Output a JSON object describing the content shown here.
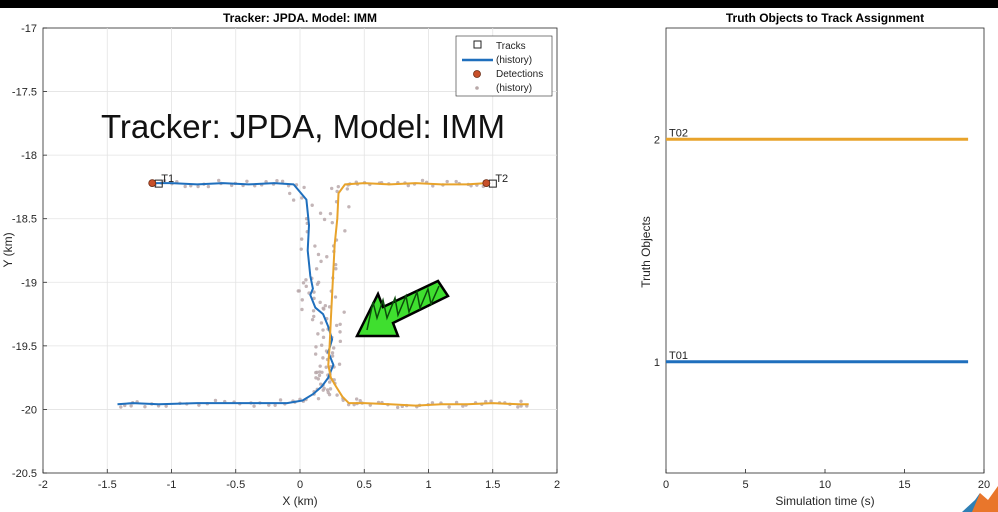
{
  "charts": {
    "left": {
      "type": "line",
      "title": "Tracker: JPDA. Model: IMM",
      "xlabel": "X (km)",
      "ylabel": "Y (km)",
      "xlim": [
        -2,
        2
      ],
      "ylim": [
        -20.5,
        -17
      ],
      "y_reversed": true,
      "grid": true,
      "xticks": [
        "-2",
        "-1.5",
        "-1",
        "-0.5",
        "0",
        "0.5",
        "1",
        "1.5",
        "2"
      ],
      "yticks": [
        "-17",
        "-17.5",
        "-18",
        "-18.5",
        "-19",
        "-19.5",
        "-20",
        "-20.5"
      ],
      "overlay_text": "Tracker: JPDA, Model: IMM",
      "legend": {
        "placement": "top-right",
        "entries": [
          "Tracks",
          "(history)",
          "Detections",
          "(history)"
        ]
      },
      "track_labels": [
        "T1",
        "T2"
      ],
      "series": [
        {
          "name": "T1",
          "color": "#1f6fbd",
          "x": [
            -1.15,
            -1.0,
            -0.8,
            -0.6,
            -0.4,
            -0.2,
            -0.05,
            0.05,
            0.07,
            0.06,
            0.08,
            0.1,
            0.08,
            0.12,
            0.18,
            0.22,
            0.25,
            0.22,
            0.26,
            0.24,
            0.22,
            0.17,
            0.1,
            0.02,
            -0.1,
            -0.3,
            -0.5,
            -0.8,
            -1.1,
            -1.3,
            -1.42
          ],
          "y": [
            -18.22,
            -18.22,
            -18.23,
            -18.22,
            -18.23,
            -18.22,
            -18.23,
            -18.35,
            -18.55,
            -18.75,
            -18.95,
            -19.05,
            -19.1,
            -19.2,
            -19.25,
            -19.35,
            -19.45,
            -19.55,
            -19.65,
            -19.7,
            -19.75,
            -19.82,
            -19.88,
            -19.93,
            -19.95,
            -19.95,
            -19.95,
            -19.95,
            -19.96,
            -19.95,
            -19.96
          ]
        },
        {
          "name": "T2",
          "color": "#e8a32b",
          "x": [
            1.45,
            1.3,
            1.1,
            0.9,
            0.7,
            0.5,
            0.35,
            0.3,
            0.29,
            0.27,
            0.26,
            0.25,
            0.24,
            0.23,
            0.22,
            0.24,
            0.28,
            0.33,
            0.38,
            0.5,
            0.7,
            0.9,
            1.1,
            1.3,
            1.5,
            1.7,
            1.78
          ],
          "y": [
            -18.22,
            -18.23,
            -18.23,
            -18.22,
            -18.23,
            -18.22,
            -18.23,
            -18.3,
            -18.5,
            -18.7,
            -18.9,
            -19.1,
            -19.3,
            -19.5,
            -19.65,
            -19.75,
            -19.82,
            -19.9,
            -19.95,
            -19.95,
            -19.96,
            -19.97,
            -19.96,
            -19.96,
            -19.95,
            -19.96,
            -19.96
          ]
        }
      ],
      "detections": [
        {
          "x": -1.15,
          "y": -18.22
        },
        {
          "x": 1.45,
          "y": -18.22
        }
      ]
    },
    "right": {
      "type": "line",
      "title": "Truth Objects to Track Assignment",
      "xlabel": "Simulation time (s)",
      "ylabel": "Truth Objects",
      "xlim": [
        0,
        20
      ],
      "ylim": [
        0.5,
        2.5
      ],
      "xticks": [
        "0",
        "5",
        "10",
        "15",
        "20"
      ],
      "yticks": [
        "1",
        "2"
      ],
      "series": [
        {
          "label": "T01",
          "color": "#1f6fbd",
          "value": 1,
          "x": [
            0,
            19
          ]
        },
        {
          "label": "T02",
          "color": "#e8a32b",
          "value": 2,
          "x": [
            0,
            19
          ]
        }
      ]
    }
  }
}
